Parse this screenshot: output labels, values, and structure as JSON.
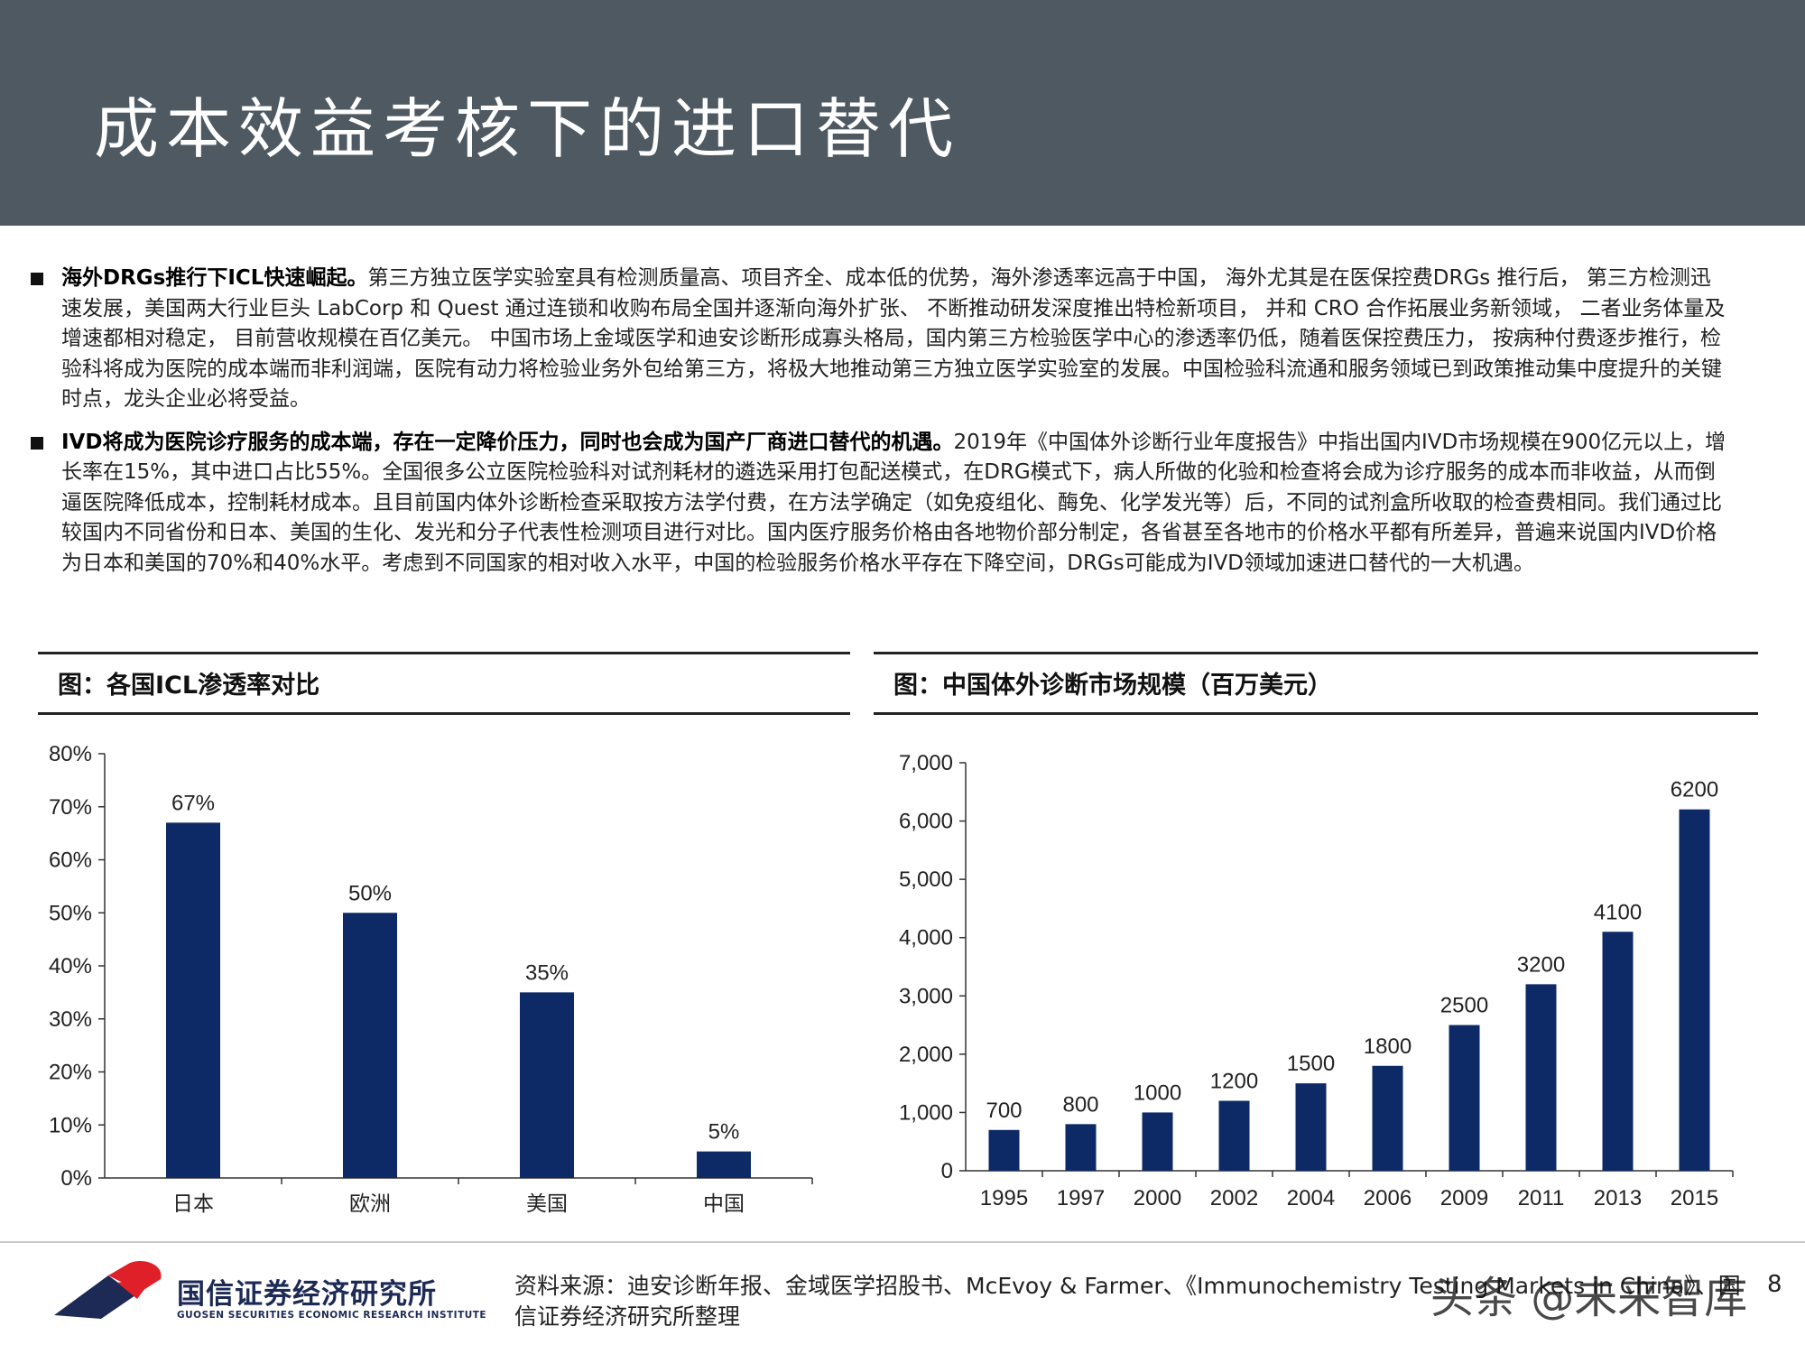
{
  "header": {
    "title": "成本效益考核下的进口替代"
  },
  "bullets": [
    {
      "lead": "海外DRGs推行下ICL快速崛起。",
      "text": "第三方独立医学实验室具有检测质量高、项目齐全、成本低的优势，海外渗透率远高于中国， 海外尤其是在医保控费DRGs 推行后， 第三方检测迅速发展，美国两大行业巨头 LabCorp 和 Quest 通过连锁和收购布局全国并逐渐向海外扩张、 不断推动研发深度推出特检新项目， 并和 CRO 合作拓展业务新领域， 二者业务体量及增速都相对稳定， 目前营收规模在百亿美元。 中国市场上金域医学和迪安诊断形成寡头格局，国内第三方检验医学中心的渗透率仍低，随着医保控费压力， 按病种付费逐步推行，检验科将成为医院的成本端而非利润端，医院有动力将检验业务外包给第三方，将极大地推动第三方独立医学实验室的发展。中国检验科流通和服务领域已到政策推动集中度提升的关键时点，龙头企业必将受益。"
    },
    {
      "lead": "IVD将成为医院诊疗服务的成本端，存在一定降价压力，同时也会成为国产厂商进口替代的机遇。",
      "text": "2019年《中国体外诊断行业年度报告》中指出国内IVD市场规模在900亿元以上，增长率在15%，其中进口占比55%。全国很多公立医院检验科对试剂耗材的遴选采用打包配送模式，在DRG模式下，病人所做的化验和检查将会成为诊疗服务的成本而非收益，从而倒逼医院降低成本，控制耗材成本。且目前国内体外诊断检查采取按方法学付费，在方法学确定（如免疫组化、酶免、化学发光等）后，不同的试剂盒所收取的检查费相同。我们通过比较国内不同省份和日本、美国的生化、发光和分子代表性检测项目进行对比。国内医疗服务价格由各地物价部分制定，各省甚至各地市的价格水平都有所差异，普遍来说国内IVD价格为日本和美国的70%和40%水平。考虑到不同国家的相对收入水平，中国的检验服务价格水平存在下降空间，DRGs可能成为IVD领域加速进口替代的一大机遇。"
    }
  ],
  "panels": {
    "left_title": "图：各国ICL渗透率对比",
    "right_title": "图：中国体外诊断市场规模（百万美元）"
  },
  "chart_data": [
    {
      "type": "bar",
      "title": "图：各国ICL渗透率对比",
      "categories": [
        "日本",
        "欧洲",
        "美国",
        "中国"
      ],
      "values": [
        67,
        50,
        35,
        5
      ],
      "data_labels": [
        "67%",
        "50%",
        "35%",
        "5%"
      ],
      "y_ticks": [
        "0%",
        "10%",
        "20%",
        "30%",
        "40%",
        "50%",
        "60%",
        "70%",
        "80%"
      ],
      "ylim": [
        0,
        80
      ],
      "grid": false,
      "bar_color": "#0d2a66"
    },
    {
      "type": "bar",
      "title": "图：中国体外诊断市场规模（百万美元）",
      "categories": [
        "1995",
        "1997",
        "2000",
        "2002",
        "2004",
        "2006",
        "2009",
        "2011",
        "2013",
        "2015"
      ],
      "values": [
        700,
        800,
        1000,
        1200,
        1500,
        1800,
        2500,
        3200,
        4100,
        6200
      ],
      "data_labels": [
        "700",
        "800",
        "1000",
        "1200",
        "1500",
        "1800",
        "2500",
        "3200",
        "4100",
        "6200"
      ],
      "y_ticks": [
        "0",
        "1,000",
        "2,000",
        "3,000",
        "4,000",
        "5,000",
        "6,000",
        "7,000"
      ],
      "ylim": [
        0,
        7000
      ],
      "grid": false,
      "bar_color": "#0d2a66"
    }
  ],
  "footer": {
    "logo_cn": "国信证券经济研究所",
    "logo_en": "GUOSEN SECURITIES ECONOMIC RESEARCH INSTITUTE",
    "source": "资料来源：迪安诊断年报、金域医学招股书、McEvoy & Farmer、《Immunochemistry Testing Markets in China》、国信证券经济研究所整理",
    "page_number": "8",
    "watermark": "头条 @未来智库",
    "logo_colors": {
      "red": "#e02028",
      "blue": "#1c2a55"
    }
  }
}
